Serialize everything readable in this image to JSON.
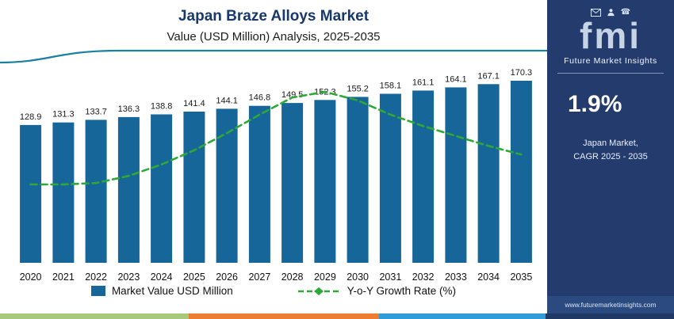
{
  "chart_data": {
    "type": "bar",
    "title": "Japan Braze Alloys Market",
    "subtitle": "Value (USD Million) Analysis, 2025-2035",
    "categories": [
      "2020",
      "2021",
      "2022",
      "2023",
      "2024",
      "2025",
      "2026",
      "2027",
      "2028",
      "2029",
      "2030",
      "2031",
      "2032",
      "2033",
      "2034",
      "2035"
    ],
    "series": [
      {
        "name": "Market Value USD Million",
        "type": "bar",
        "color": "#17669a",
        "values": [
          128.9,
          131.3,
          133.7,
          136.3,
          138.8,
          141.4,
          144.1,
          146.8,
          149.5,
          152.3,
          155.2,
          158.1,
          161.1,
          164.1,
          167.1,
          170.3
        ]
      },
      {
        "name": "Y-o-Y Growth Rate (%)",
        "type": "line",
        "color": "#2ea836",
        "style": "dashed",
        "values": [
          1.6,
          1.6,
          1.62,
          1.72,
          1.88,
          2.08,
          2.32,
          2.58,
          2.82,
          2.9,
          2.78,
          2.58,
          2.42,
          2.28,
          2.14,
          2.02
        ]
      }
    ],
    "value_labels": true,
    "xlabel": "",
    "ylabel": "",
    "ylim": [
      0,
      175
    ],
    "grid": false,
    "legend_position": "bottom"
  },
  "legend": {
    "bar_label": "Market Value USD Million",
    "line_label": "Y-o-Y Growth Rate (%)"
  },
  "sidebar": {
    "brand_word": "fmi",
    "brand_name": "Future Market Insights",
    "stat_value": "1.9%",
    "stat_label_line1": "Japan Market,",
    "stat_label_line2": "CAGR 2025 - 2035",
    "website": "www.futuremarketinsights.com",
    "icons": [
      "mail-icon",
      "person-icon",
      "phone-icon"
    ]
  },
  "colors": {
    "title_navy": "#17386b",
    "bar_blue": "#17669a",
    "line_green": "#2ea836",
    "sidebar_navy": "#233b6d",
    "header_rule_teal": "#1d7fa0",
    "strip_green": "#a8c97c",
    "strip_orange": "#ed7d31",
    "strip_blue": "#2f9bd8",
    "strip_navy": "#1f3864"
  }
}
